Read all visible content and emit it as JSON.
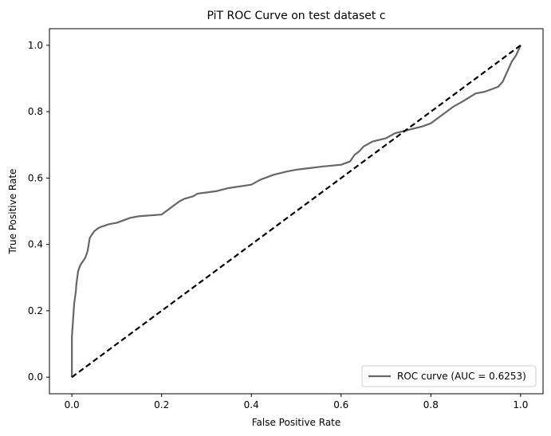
{
  "chart_data": {
    "type": "line",
    "title": "PiT ROC Curve on test dataset c",
    "xlabel": "False Positive Rate",
    "ylabel": "True Positive Rate",
    "xlim": [
      -0.05,
      1.05
    ],
    "ylim": [
      -0.05,
      1.05
    ],
    "xticks": [
      "0.0",
      "0.2",
      "0.4",
      "0.6",
      "0.8",
      "1.0"
    ],
    "yticks": [
      "0.0",
      "0.2",
      "0.4",
      "0.6",
      "0.8",
      "1.0"
    ],
    "grid": false,
    "legend_position": "bottom-right",
    "series": [
      {
        "name": "ROC curve (AUC = 0.6253)",
        "color": "#666666",
        "style": "solid",
        "x": [
          0.0,
          0.0,
          0.002,
          0.004,
          0.005,
          0.007,
          0.009,
          0.01,
          0.012,
          0.014,
          0.018,
          0.02,
          0.025,
          0.03,
          0.035,
          0.04,
          0.045,
          0.05,
          0.055,
          0.06,
          0.065,
          0.07,
          0.075,
          0.08,
          0.09,
          0.1,
          0.13,
          0.15,
          0.2,
          0.21,
          0.23,
          0.24,
          0.25,
          0.27,
          0.28,
          0.32,
          0.35,
          0.4,
          0.42,
          0.45,
          0.48,
          0.5,
          0.53,
          0.56,
          0.6,
          0.62,
          0.63,
          0.64,
          0.65,
          0.67,
          0.7,
          0.72,
          0.75,
          0.78,
          0.8,
          0.82,
          0.85,
          0.87,
          0.9,
          0.92,
          0.95,
          0.96,
          0.97,
          0.98,
          0.985,
          0.99,
          0.995,
          1.0,
          1.0
        ],
        "y": [
          0.0,
          0.12,
          0.16,
          0.2,
          0.22,
          0.24,
          0.26,
          0.28,
          0.3,
          0.32,
          0.335,
          0.34,
          0.35,
          0.36,
          0.38,
          0.42,
          0.43,
          0.44,
          0.445,
          0.45,
          0.453,
          0.455,
          0.457,
          0.46,
          0.463,
          0.465,
          0.48,
          0.485,
          0.49,
          0.5,
          0.52,
          0.53,
          0.537,
          0.545,
          0.553,
          0.56,
          0.57,
          0.58,
          0.595,
          0.61,
          0.62,
          0.625,
          0.63,
          0.635,
          0.64,
          0.65,
          0.67,
          0.68,
          0.695,
          0.71,
          0.72,
          0.735,
          0.745,
          0.755,
          0.765,
          0.785,
          0.815,
          0.83,
          0.855,
          0.86,
          0.875,
          0.89,
          0.92,
          0.95,
          0.96,
          0.97,
          0.985,
          1.0,
          1.0
        ]
      },
      {
        "name": "",
        "color": "#000000",
        "style": "dashed",
        "x": [
          0.0,
          1.0
        ],
        "y": [
          0.0,
          1.0
        ]
      }
    ],
    "legend": [
      {
        "label": "ROC curve (AUC = 0.6253)",
        "series_index": 0
      }
    ]
  }
}
